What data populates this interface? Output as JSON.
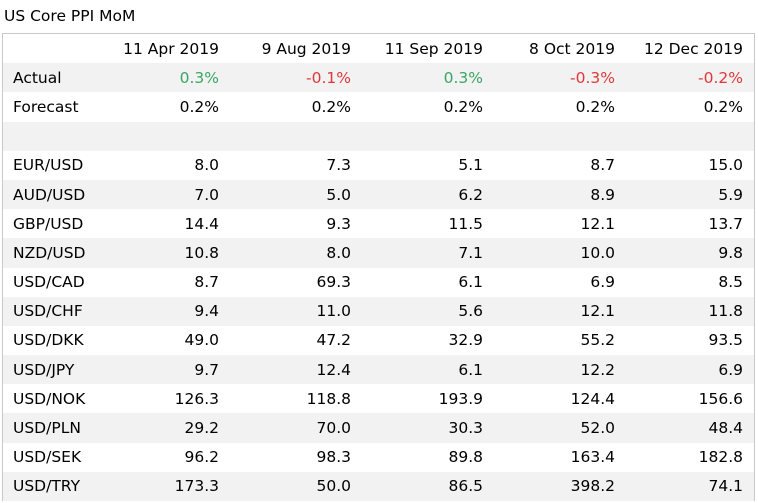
{
  "title": "US Core PPI MoM",
  "columns": [
    "",
    "11 Apr 2019",
    "9 Aug 2019",
    "11 Sep 2019",
    "8 Oct 2019",
    "12 Dec 2019"
  ],
  "colors": {
    "positive": "#3aa562",
    "negative": "#e0383a",
    "shade": "#f2f2f2"
  },
  "actual": {
    "label": "Actual",
    "values": [
      "0.3%",
      "-0.1%",
      "0.3%",
      "-0.3%",
      "-0.2%"
    ]
  },
  "forecast": {
    "label": "Forecast",
    "values": [
      "0.2%",
      "0.2%",
      "0.2%",
      "0.2%",
      "0.2%"
    ]
  },
  "pairs": [
    {
      "label": "EUR/USD",
      "values": [
        "8.0",
        "7.3",
        "5.1",
        "8.7",
        "15.0"
      ]
    },
    {
      "label": "AUD/USD",
      "values": [
        "7.0",
        "5.0",
        "6.2",
        "8.9",
        "5.9"
      ]
    },
    {
      "label": "GBP/USD",
      "values": [
        "14.4",
        "9.3",
        "11.5",
        "12.1",
        "13.7"
      ]
    },
    {
      "label": "NZD/USD",
      "values": [
        "10.8",
        "8.0",
        "7.1",
        "10.0",
        "9.8"
      ]
    },
    {
      "label": "USD/CAD",
      "values": [
        "8.7",
        "69.3",
        "6.1",
        "6.9",
        "8.5"
      ]
    },
    {
      "label": "USD/CHF",
      "values": [
        "9.4",
        "11.0",
        "5.6",
        "12.1",
        "11.8"
      ]
    },
    {
      "label": "USD/DKK",
      "values": [
        "49.0",
        "47.2",
        "32.9",
        "55.2",
        "93.5"
      ]
    },
    {
      "label": "USD/JPY",
      "values": [
        "9.7",
        "12.4",
        "6.1",
        "12.2",
        "6.9"
      ]
    },
    {
      "label": "USD/NOK",
      "values": [
        "126.3",
        "118.8",
        "193.9",
        "124.4",
        "156.6"
      ]
    },
    {
      "label": "USD/PLN",
      "values": [
        "29.2",
        "70.0",
        "30.3",
        "52.0",
        "48.4"
      ]
    },
    {
      "label": "USD/SEK",
      "values": [
        "96.2",
        "98.3",
        "89.8",
        "163.4",
        "182.8"
      ]
    },
    {
      "label": "USD/TRY",
      "values": [
        "173.3",
        "50.0",
        "86.5",
        "398.2",
        "74.1"
      ]
    }
  ]
}
